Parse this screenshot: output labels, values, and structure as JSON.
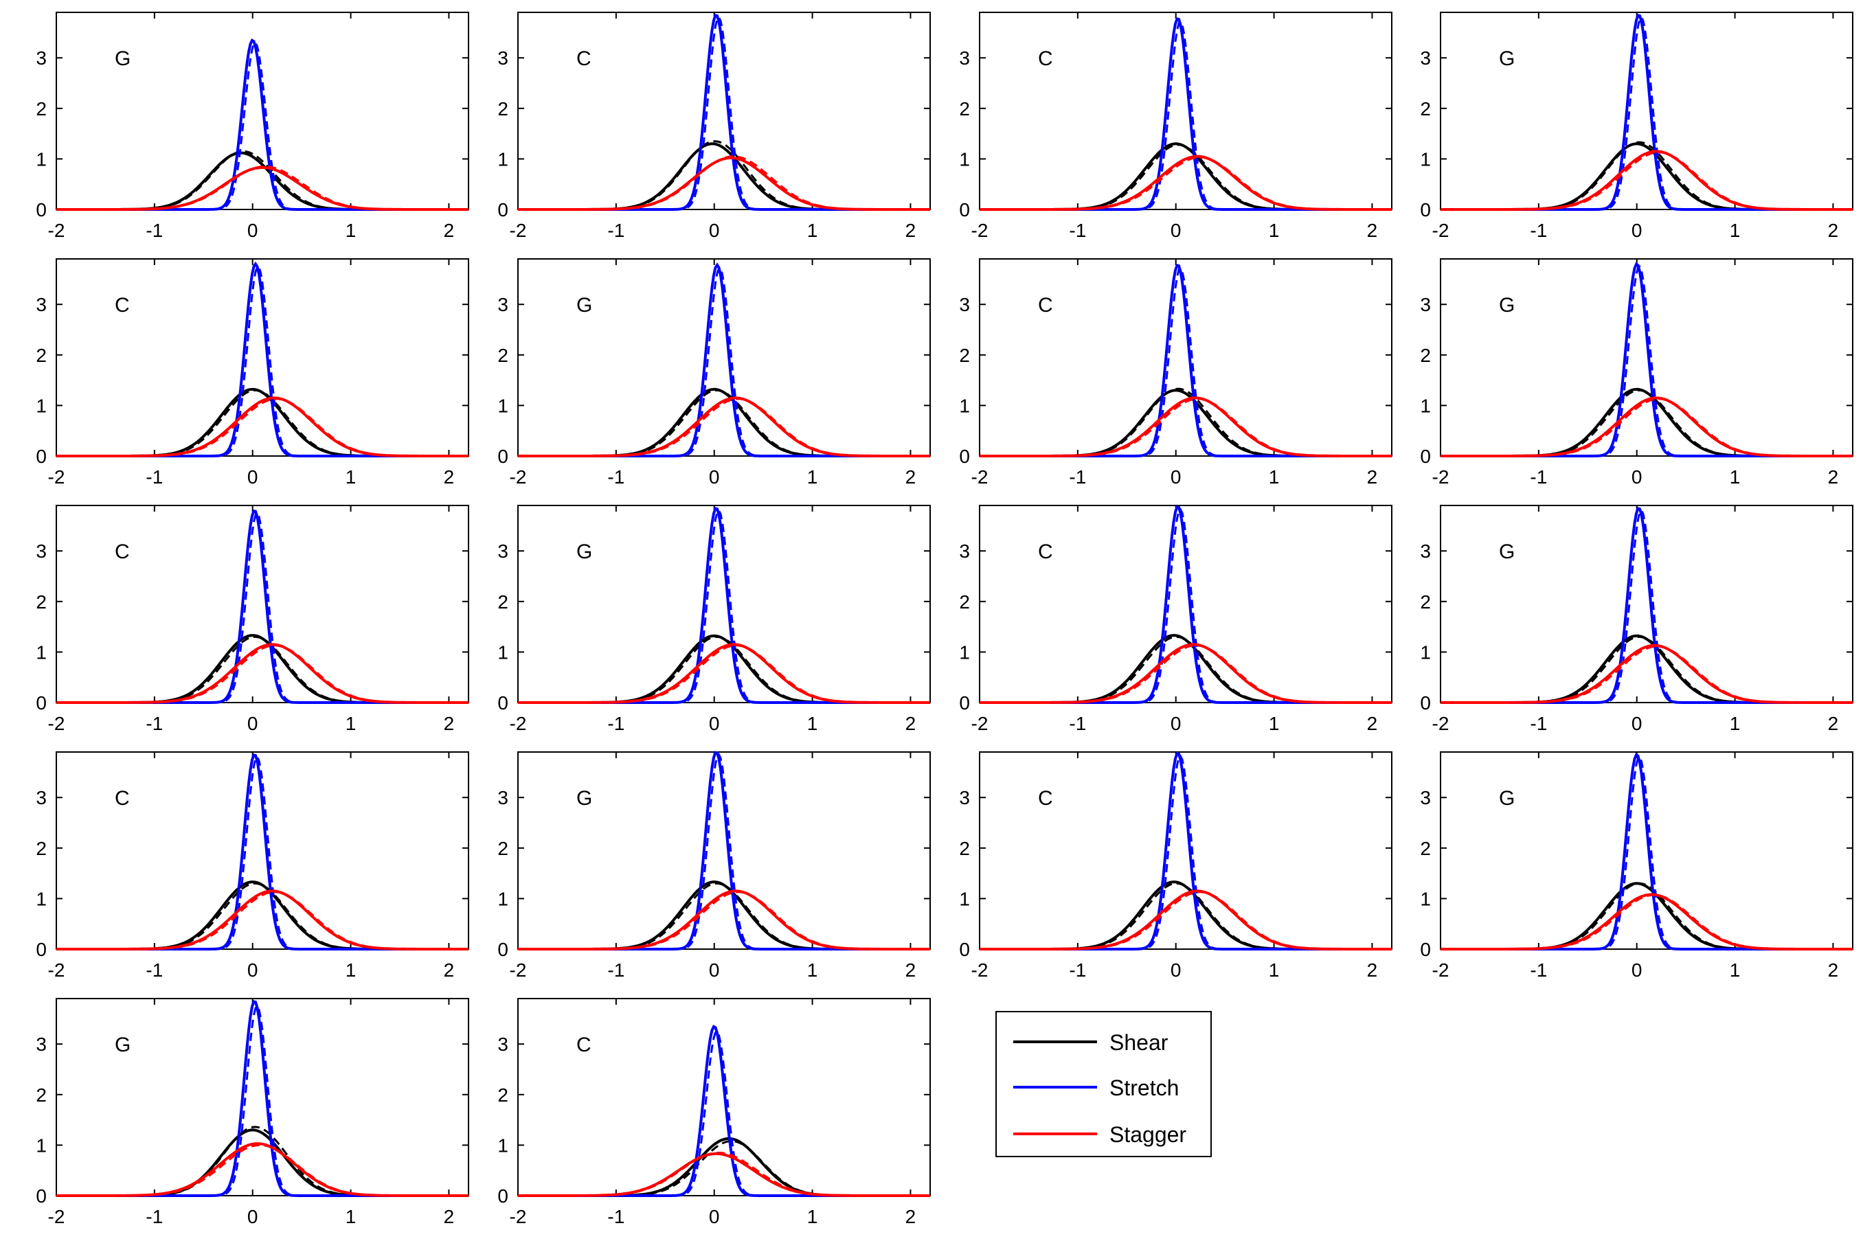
{
  "figure": {
    "legend": {
      "entries": [
        {
          "name": "Shear",
          "color": "#000000"
        },
        {
          "name": "Stretch",
          "color": "#0000ff"
        },
        {
          "name": "Stagger",
          "color": "#ff0000"
        }
      ],
      "placement": "row-5, column-3 slot"
    },
    "panel_labels": [
      "G",
      "C",
      "C",
      "G",
      "C",
      "G",
      "C",
      "G",
      "C",
      "G",
      "C",
      "G",
      "C",
      "G",
      "C",
      "G",
      "G",
      "C"
    ]
  },
  "chart_data": {
    "type": "line",
    "layout": "small multiples, 4 columns x 5 rows (18 panels)",
    "xlim": [
      -2,
      2.2
    ],
    "ylim": [
      0,
      3.9
    ],
    "xticks": [
      -2,
      -1,
      0,
      1,
      2
    ],
    "yticks": [
      0,
      1,
      2,
      3
    ],
    "grid": false,
    "series_colors": {
      "Shear": "#000000",
      "Stretch": "#0000ff",
      "Stagger": "#ff0000"
    },
    "line_styles": [
      "solid",
      "dashed"
    ],
    "note": "Each series drawn as a Gaussian-shaped density curve (solid + dashed variant); values given as peak location (mu), peak height (peak), dashed peak height (peak_dashed).",
    "panels": [
      {
        "label": "G",
        "series": [
          {
            "name": "Shear",
            "mu": -0.12,
            "peak": 1.12,
            "peak_dashed": 1.15
          },
          {
            "name": "Stretch",
            "mu": 0.0,
            "peak": 3.35,
            "peak_dashed": 3.3
          },
          {
            "name": "Stagger",
            "mu": 0.1,
            "peak": 0.83,
            "peak_dashed": 0.85
          }
        ]
      },
      {
        "label": "C",
        "series": [
          {
            "name": "Shear",
            "mu": -0.02,
            "peak": 1.3,
            "peak_dashed": 1.35
          },
          {
            "name": "Stretch",
            "mu": 0.02,
            "peak": 3.85,
            "peak_dashed": 3.8
          },
          {
            "name": "Stagger",
            "mu": 0.17,
            "peak": 1.02,
            "peak_dashed": 1.05
          }
        ]
      },
      {
        "label": "C",
        "series": [
          {
            "name": "Shear",
            "mu": 0.0,
            "peak": 1.3,
            "peak_dashed": 1.28
          },
          {
            "name": "Stretch",
            "mu": 0.02,
            "peak": 3.78,
            "peak_dashed": 3.72
          },
          {
            "name": "Stagger",
            "mu": 0.22,
            "peak": 1.05,
            "peak_dashed": 1.03
          }
        ]
      },
      {
        "label": "G",
        "series": [
          {
            "name": "Shear",
            "mu": 0.0,
            "peak": 1.3,
            "peak_dashed": 1.33
          },
          {
            "name": "Stretch",
            "mu": 0.02,
            "peak": 3.85,
            "peak_dashed": 3.8
          },
          {
            "name": "Stagger",
            "mu": 0.2,
            "peak": 1.15,
            "peak_dashed": 1.13
          }
        ]
      },
      {
        "label": "C",
        "series": [
          {
            "name": "Shear",
            "mu": 0.0,
            "peak": 1.32,
            "peak_dashed": 1.3
          },
          {
            "name": "Stretch",
            "mu": 0.03,
            "peak": 3.8,
            "peak_dashed": 3.75
          },
          {
            "name": "Stagger",
            "mu": 0.22,
            "peak": 1.15,
            "peak_dashed": 1.13
          }
        ]
      },
      {
        "label": "G",
        "series": [
          {
            "name": "Shear",
            "mu": 0.0,
            "peak": 1.32,
            "peak_dashed": 1.3
          },
          {
            "name": "Stretch",
            "mu": 0.03,
            "peak": 3.78,
            "peak_dashed": 3.72
          },
          {
            "name": "Stagger",
            "mu": 0.22,
            "peak": 1.15,
            "peak_dashed": 1.13
          }
        ]
      },
      {
        "label": "C",
        "series": [
          {
            "name": "Shear",
            "mu": 0.0,
            "peak": 1.3,
            "peak_dashed": 1.33
          },
          {
            "name": "Stretch",
            "mu": 0.02,
            "peak": 3.78,
            "peak_dashed": 3.72
          },
          {
            "name": "Stagger",
            "mu": 0.2,
            "peak": 1.15,
            "peak_dashed": 1.13
          }
        ]
      },
      {
        "label": "G",
        "series": [
          {
            "name": "Shear",
            "mu": 0.0,
            "peak": 1.32,
            "peak_dashed": 1.3
          },
          {
            "name": "Stretch",
            "mu": 0.0,
            "peak": 3.8,
            "peak_dashed": 3.75
          },
          {
            "name": "Stagger",
            "mu": 0.2,
            "peak": 1.15,
            "peak_dashed": 1.13
          }
        ]
      },
      {
        "label": "C",
        "series": [
          {
            "name": "Shear",
            "mu": 0.0,
            "peak": 1.33,
            "peak_dashed": 1.3
          },
          {
            "name": "Stretch",
            "mu": 0.02,
            "peak": 3.8,
            "peak_dashed": 3.75
          },
          {
            "name": "Stagger",
            "mu": 0.2,
            "peak": 1.15,
            "peak_dashed": 1.13
          }
        ]
      },
      {
        "label": "G",
        "series": [
          {
            "name": "Shear",
            "mu": 0.0,
            "peak": 1.32,
            "peak_dashed": 1.3
          },
          {
            "name": "Stretch",
            "mu": 0.02,
            "peak": 3.85,
            "peak_dashed": 3.8
          },
          {
            "name": "Stagger",
            "mu": 0.2,
            "peak": 1.15,
            "peak_dashed": 1.13
          }
        ]
      },
      {
        "label": "C",
        "series": [
          {
            "name": "Shear",
            "mu": -0.02,
            "peak": 1.33,
            "peak_dashed": 1.3
          },
          {
            "name": "Stretch",
            "mu": 0.02,
            "peak": 3.88,
            "peak_dashed": 3.82
          },
          {
            "name": "Stagger",
            "mu": 0.18,
            "peak": 1.15,
            "peak_dashed": 1.13
          }
        ]
      },
      {
        "label": "G",
        "series": [
          {
            "name": "Shear",
            "mu": 0.0,
            "peak": 1.32,
            "peak_dashed": 1.3
          },
          {
            "name": "Stretch",
            "mu": 0.02,
            "peak": 3.85,
            "peak_dashed": 3.8
          },
          {
            "name": "Stagger",
            "mu": 0.18,
            "peak": 1.13,
            "peak_dashed": 1.11
          }
        ]
      },
      {
        "label": "C",
        "series": [
          {
            "name": "Shear",
            "mu": 0.0,
            "peak": 1.33,
            "peak_dashed": 1.3
          },
          {
            "name": "Stretch",
            "mu": 0.02,
            "peak": 3.85,
            "peak_dashed": 3.8
          },
          {
            "name": "Stagger",
            "mu": 0.2,
            "peak": 1.15,
            "peak_dashed": 1.13
          }
        ]
      },
      {
        "label": "G",
        "series": [
          {
            "name": "Shear",
            "mu": 0.0,
            "peak": 1.33,
            "peak_dashed": 1.3
          },
          {
            "name": "Stretch",
            "mu": 0.02,
            "peak": 3.9,
            "peak_dashed": 3.85
          },
          {
            "name": "Stagger",
            "mu": 0.22,
            "peak": 1.15,
            "peak_dashed": 1.13
          }
        ]
      },
      {
        "label": "C",
        "series": [
          {
            "name": "Shear",
            "mu": -0.02,
            "peak": 1.33,
            "peak_dashed": 1.3
          },
          {
            "name": "Stretch",
            "mu": 0.02,
            "peak": 3.88,
            "peak_dashed": 3.82
          },
          {
            "name": "Stagger",
            "mu": 0.22,
            "peak": 1.15,
            "peak_dashed": 1.13
          }
        ]
      },
      {
        "label": "G",
        "series": [
          {
            "name": "Shear",
            "mu": 0.0,
            "peak": 1.3,
            "peak_dashed": 1.3
          },
          {
            "name": "Stretch",
            "mu": 0.0,
            "peak": 3.85,
            "peak_dashed": 3.8
          },
          {
            "name": "Stagger",
            "mu": 0.15,
            "peak": 1.08,
            "peak_dashed": 1.07
          }
        ]
      },
      {
        "label": "G",
        "series": [
          {
            "name": "Shear",
            "mu": 0.0,
            "peak": 1.3,
            "peak_dashed": 1.36
          },
          {
            "name": "Stretch",
            "mu": 0.02,
            "peak": 3.85,
            "peak_dashed": 3.75
          },
          {
            "name": "Stagger",
            "mu": 0.05,
            "peak": 1.03,
            "peak_dashed": 1.0
          }
        ]
      },
      {
        "label": "C",
        "series": [
          {
            "name": "Shear",
            "mu": 0.15,
            "peak": 1.13,
            "peak_dashed": 1.08
          },
          {
            "name": "Stretch",
            "mu": 0.0,
            "peak": 3.35,
            "peak_dashed": 3.25
          },
          {
            "name": "Stagger",
            "mu": 0.02,
            "peak": 0.83,
            "peak_dashed": 0.85
          }
        ]
      }
    ]
  }
}
